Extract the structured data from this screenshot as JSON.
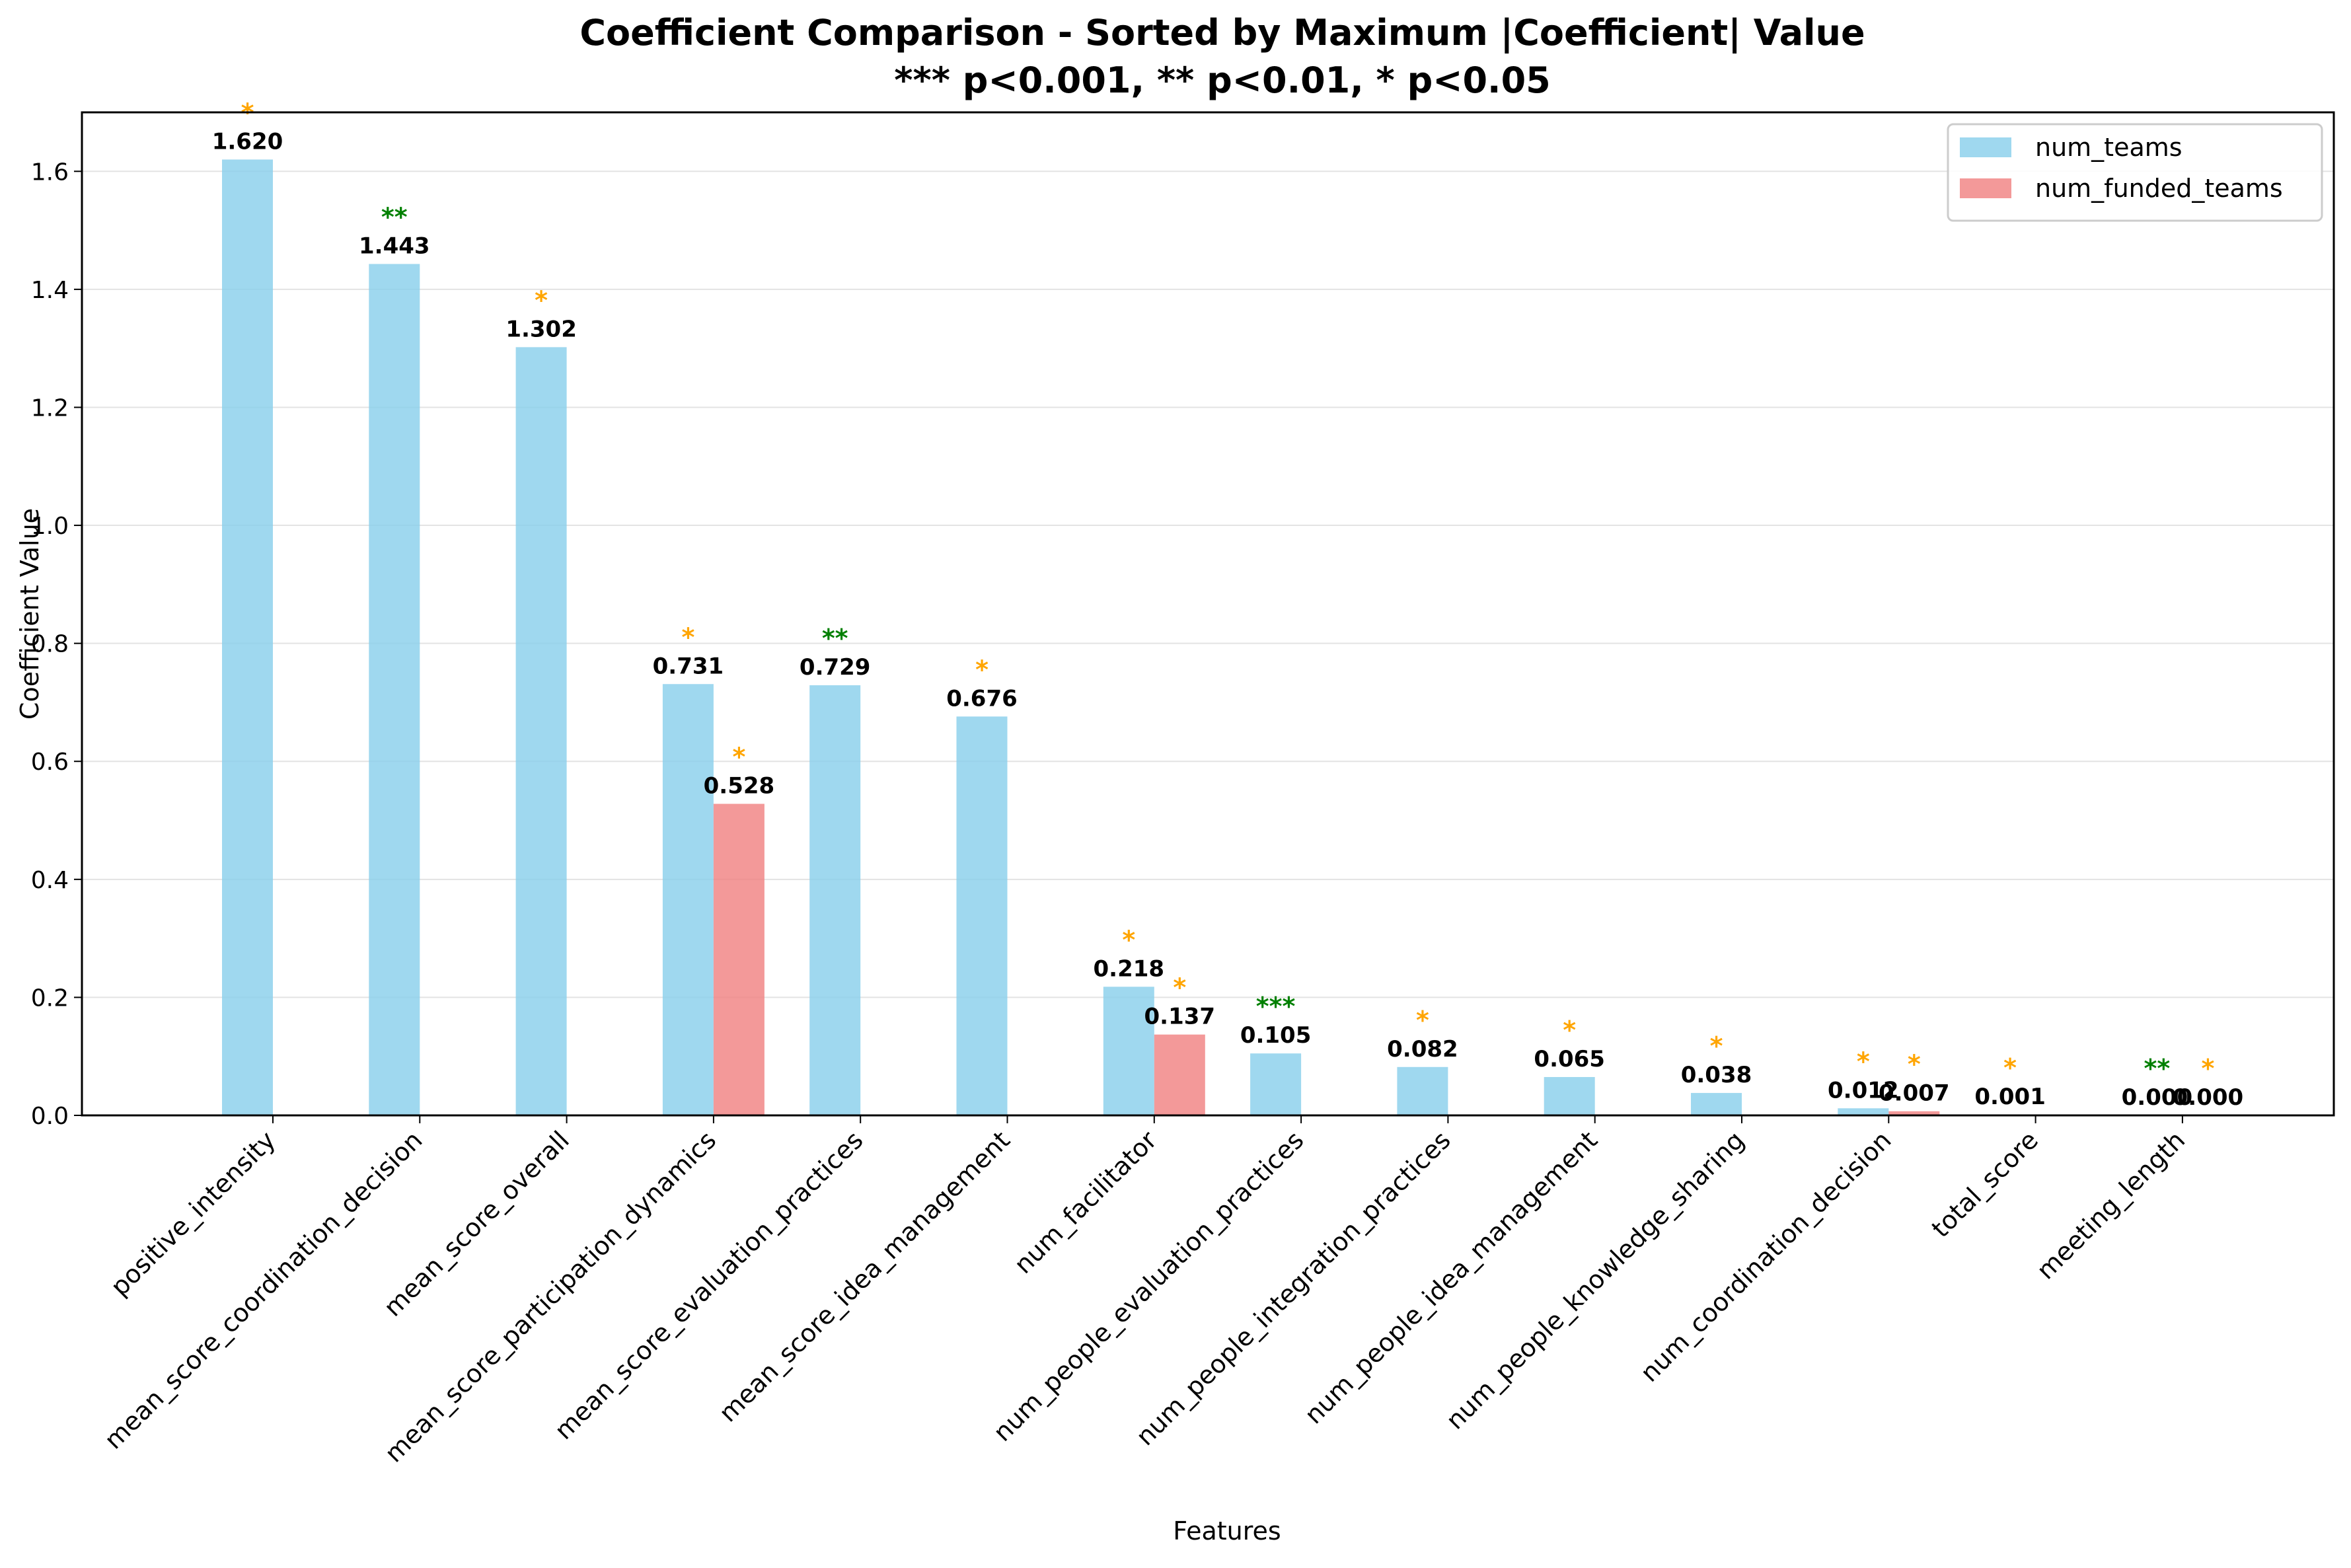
{
  "chart_data": {
    "type": "bar",
    "title": "Coefficient Comparison - Sorted by Maximum |Coefficient| Value",
    "subtitle": "*** p<0.001, ** p<0.01, * p<0.05",
    "xlabel": "Features",
    "ylabel": "Coefficient Value",
    "ylim": [
      0,
      1.7
    ],
    "yticks": [
      0.0,
      0.2,
      0.4,
      0.6,
      0.8,
      1.0,
      1.2,
      1.4,
      1.6
    ],
    "ytick_labels": [
      "0.0",
      "0.2",
      "0.4",
      "0.6",
      "0.8",
      "1.0",
      "1.2",
      "1.4",
      "1.6"
    ],
    "grid": "y",
    "legend_position": "top-right",
    "categories": [
      "positive_intensity",
      "mean_score_coordination_decision",
      "mean_score_overall",
      "mean_score_participation_dynamics",
      "mean_score_evaluation_practices",
      "mean_score_idea_management",
      "num_facilitator",
      "num_people_evaluation_practices",
      "num_people_integration_practices",
      "num_people_idea_management",
      "num_people_knowledge_sharing",
      "num_coordination_decision",
      "total_score",
      "meeting_length"
    ],
    "series": [
      {
        "name": "num_teams",
        "color": "#87ceeb",
        "values": [
          1.62,
          1.443,
          1.302,
          0.731,
          0.729,
          0.676,
          0.218,
          0.105,
          0.082,
          0.065,
          0.038,
          0.012,
          0.001,
          0.0
        ],
        "labels": [
          "1.620",
          "1.443",
          "1.302",
          "0.731",
          "0.729",
          "0.676",
          "0.218",
          "0.105",
          "0.082",
          "0.065",
          "0.038",
          "0.012",
          "0.001",
          "0.000"
        ],
        "significance": [
          "*",
          "**",
          "*",
          "*",
          "**",
          "*",
          "*",
          "***",
          "*",
          "*",
          "*",
          "*",
          "*",
          "**"
        ]
      },
      {
        "name": "num_funded_teams",
        "color": "#f08080",
        "values": [
          null,
          null,
          null,
          0.528,
          null,
          null,
          0.137,
          null,
          null,
          null,
          null,
          0.007,
          null,
          0.0
        ],
        "labels": [
          null,
          null,
          null,
          "0.528",
          null,
          null,
          "0.137",
          null,
          null,
          null,
          null,
          "0.007",
          null,
          "0.000"
        ],
        "significance": [
          null,
          null,
          null,
          "*",
          null,
          null,
          "*",
          null,
          null,
          null,
          null,
          "*",
          null,
          "*"
        ]
      }
    ],
    "significance_colors": {
      "*": "#ffa500",
      "**": "#008000",
      "***": "#008000"
    }
  }
}
